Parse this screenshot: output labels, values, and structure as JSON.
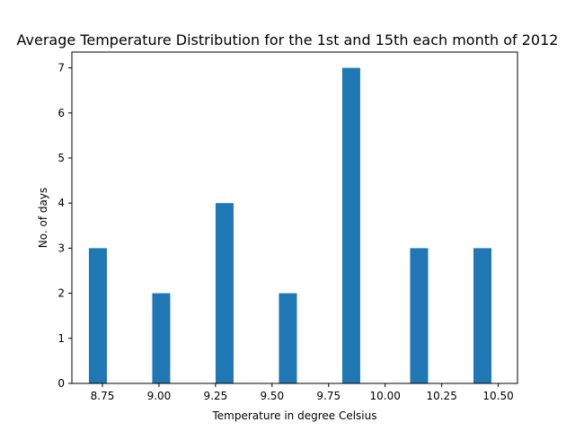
{
  "chart_data": {
    "type": "bar",
    "title": "Average Temperature Distribution for the 1st and 15th each month of 2012",
    "xlabel": "Temperature in degree Celsius",
    "ylabel": "No. of days",
    "xlim": [
      8.615,
      10.585
    ],
    "ylim": [
      0,
      7.35
    ],
    "bar_width": 0.0795,
    "color": "#1f77b4",
    "bars": [
      {
        "x": 8.73,
        "value": 3
      },
      {
        "x": 9.01,
        "value": 2
      },
      {
        "x": 9.29,
        "value": 4
      },
      {
        "x": 9.57,
        "value": 2
      },
      {
        "x": 9.85,
        "value": 7
      },
      {
        "x": 10.15,
        "value": 3
      },
      {
        "x": 10.43,
        "value": 3
      }
    ],
    "xticks": [
      "8.75",
      "9.00",
      "9.25",
      "9.50",
      "9.75",
      "10.00",
      "10.25",
      "10.50"
    ],
    "xtick_values": [
      8.75,
      9.0,
      9.25,
      9.5,
      9.75,
      10.0,
      10.25,
      10.5
    ],
    "yticks": [
      "0",
      "1",
      "2",
      "3",
      "4",
      "5",
      "6",
      "7"
    ],
    "ytick_values": [
      0,
      1,
      2,
      3,
      4,
      5,
      6,
      7
    ],
    "grid": false,
    "legend": "none"
  }
}
